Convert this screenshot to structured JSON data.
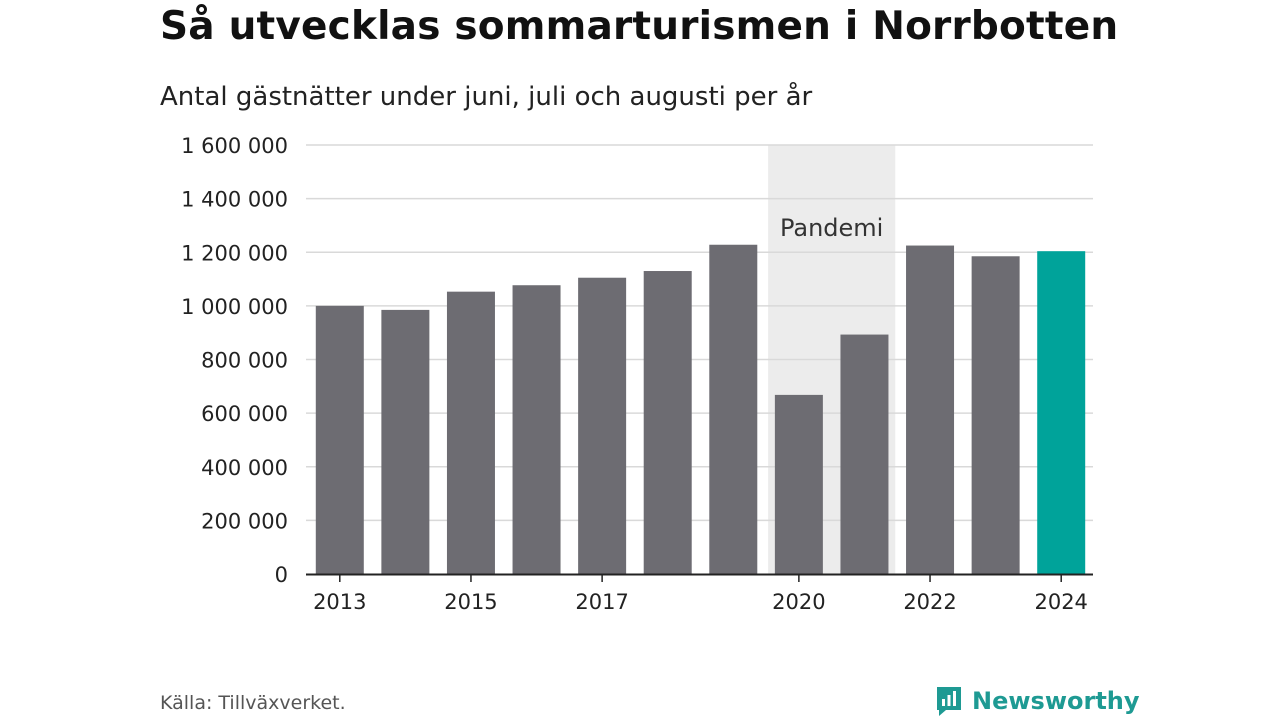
{
  "title": "Så utvecklas sommarturismen i Norrbotten",
  "subtitle": "Antal gästnätter under juni, juli och augusti per år",
  "source": "Källa: Tillväxverket.",
  "brand": {
    "name": "Newsworthy",
    "color": "#1e9a93"
  },
  "colors": {
    "bar": "#6d6c72",
    "highlight": "#00a39a",
    "grid": "#d9d9d9",
    "axis": "#222222",
    "band": "#ececec"
  },
  "chart_data": {
    "type": "bar",
    "categories": [
      "2013",
      "2014",
      "2015",
      "2016",
      "2017",
      "2018",
      "2019",
      "2020",
      "2021",
      "2022",
      "2023",
      "2024"
    ],
    "values": [
      1000000,
      985000,
      1053000,
      1077000,
      1105000,
      1130000,
      1228000,
      668000,
      893000,
      1225000,
      1185000,
      1204000
    ],
    "highlight_category": "2024",
    "x_tick_labels": [
      "2013",
      "2015",
      "2017",
      "2020",
      "2022",
      "2024"
    ],
    "y_ticks": [
      0,
      200000,
      400000,
      600000,
      800000,
      1000000,
      1200000,
      1400000,
      1600000
    ],
    "y_tick_labels": [
      "0",
      "200 000",
      "400 000",
      "600 000",
      "800 000",
      "1 000 000",
      "1 200 000",
      "1 400 000",
      "1 600 000"
    ],
    "ylim": [
      0,
      1600000
    ],
    "xlabel": "",
    "ylabel": "",
    "grid": true,
    "annotation": {
      "label": "Pandemi",
      "from": "2020",
      "to": "2021"
    }
  }
}
